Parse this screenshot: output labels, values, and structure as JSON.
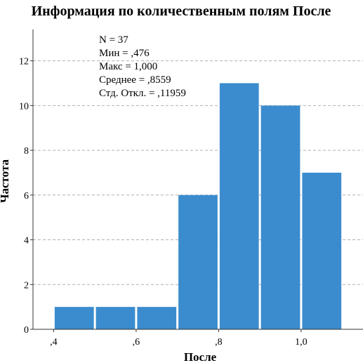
{
  "chart_data": {
    "type": "bar",
    "title": "Информация по количественным полям После",
    "xlabel": "После",
    "ylabel": "Частота",
    "x_tick_labels": [
      ",4",
      ",6",
      ",8",
      "1,0"
    ],
    "x_ticks": [
      0.4,
      0.6,
      0.8,
      1.0
    ],
    "y_tick_labels": [
      "0",
      "2",
      "4",
      "6",
      "8",
      "10",
      "12"
    ],
    "y_ticks": [
      0,
      2,
      4,
      6,
      8,
      10,
      12
    ],
    "xlim": [
      0.35,
      1.15
    ],
    "ylim": [
      0,
      13.4
    ],
    "bins": [
      {
        "start": 0.4,
        "end": 0.5,
        "value": 1
      },
      {
        "start": 0.5,
        "end": 0.6,
        "value": 1
      },
      {
        "start": 0.6,
        "end": 0.7,
        "value": 1
      },
      {
        "start": 0.7,
        "end": 0.8,
        "value": 6
      },
      {
        "start": 0.8,
        "end": 0.9,
        "value": 11
      },
      {
        "start": 0.9,
        "end": 1.0,
        "value": 10
      },
      {
        "start": 1.0,
        "end": 1.1,
        "value": 7
      }
    ],
    "statistics": [
      "N = 37",
      "Мин = ,476",
      "Макс = 1,000",
      "Среднее = ,8559",
      "Стд. Откл. = ,11959"
    ],
    "grid": "horizontal dashed",
    "colors": {
      "bar": "#3a8cce",
      "grid": "#b0b0b0",
      "axis": "#333333"
    }
  }
}
